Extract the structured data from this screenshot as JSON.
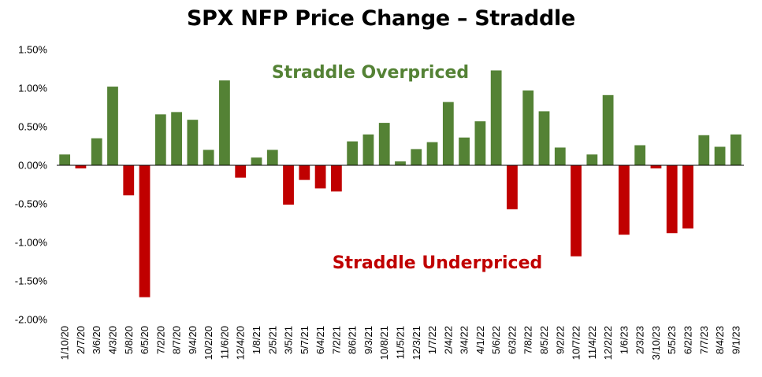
{
  "chart_data": {
    "type": "bar",
    "title": "SPX NFP Price Change – Straddle",
    "xlabel": "",
    "ylabel": "",
    "ylim": [
      -2.0,
      1.5
    ],
    "yticks": [
      -2.0,
      -1.5,
      -1.0,
      -0.5,
      0.0,
      0.5,
      1.0,
      1.5
    ],
    "ytick_labels": [
      "-2.00%",
      "-1.50%",
      "-1.00%",
      "-0.50%",
      "0.00%",
      "0.50%",
      "1.00%",
      "1.50%"
    ],
    "grid": false,
    "legend": "none",
    "categories": [
      "1/10/20",
      "2/7/20",
      "3/6/20",
      "4/3/20",
      "5/8/20",
      "6/5/20",
      "7/2/20",
      "8/7/20",
      "9/4/20",
      "10/2/20",
      "11/6/20",
      "12/4/20",
      "1/8/21",
      "2/5/21",
      "3/5/21",
      "5/7/21",
      "6/4/21",
      "7/2/21",
      "8/6/21",
      "9/3/21",
      "10/8/21",
      "11/5/21",
      "12/3/21",
      "1/7/22",
      "2/4/22",
      "3/4/22",
      "4/1/22",
      "5/6/22",
      "6/3/22",
      "7/8/22",
      "8/5/22",
      "9/2/22",
      "10/7/22",
      "11/4/22",
      "12/2/22",
      "1/6/23",
      "2/3/23",
      "3/10/23",
      "5/5/23",
      "6/2/23",
      "7/7/23",
      "8/4/23",
      "9/1/23"
    ],
    "categories_shown": [
      "1/10/20",
      "2/7/20",
      "3/6/20",
      "4/3/20",
      "5/8/20",
      "6/5/20",
      "7/2/20",
      "8/7/20",
      "9/4/20",
      "10/2/20",
      "11/6/20",
      "12/4/20",
      "1/8/21",
      "2/5/21",
      "3/5/21",
      "5/7/21",
      "6/4/21",
      "7/2/21",
      "8/6/21",
      "9/3/21",
      "10/8/21",
      "11/5/21",
      "12/3/21",
      "1/7/22",
      "2/4/22",
      "3/4/22",
      "4/1/22",
      "5/6/22",
      "6/3/22",
      "7/8/22",
      "8/5/22",
      "9/2/22",
      "10/7/22",
      "11/4/22",
      "12/2/22",
      "1/6/23",
      "2/3/23",
      "3/10/23",
      "5/5/23",
      "6/2/23",
      "7/7/23",
      "8/4/23",
      "9/1/23"
    ],
    "values": [
      0.14,
      -0.04,
      0.35,
      1.02,
      -0.39,
      -1.71,
      0.66,
      0.69,
      0.59,
      0.2,
      1.1,
      -0.16,
      0.1,
      0.2,
      -0.51,
      -0.19,
      -0.3,
      -0.34,
      0.31,
      0.4,
      0.55,
      0.05,
      0.21,
      0.3,
      0.82,
      0.36,
      0.57,
      1.23,
      -0.57,
      0.97,
      0.7,
      0.23,
      -1.18,
      0.14,
      0.91,
      -0.9,
      0.26,
      -0.04,
      -0.88,
      -0.82,
      0.39,
      0.24,
      0.4
    ],
    "colors": {
      "positive": "#548235",
      "negative": "#c00000",
      "axis": "#000000"
    },
    "annotations": [
      {
        "text": "Straddle Overpriced",
        "color": "#548235"
      },
      {
        "text": "Straddle Underpriced",
        "color": "#c00000"
      }
    ]
  }
}
